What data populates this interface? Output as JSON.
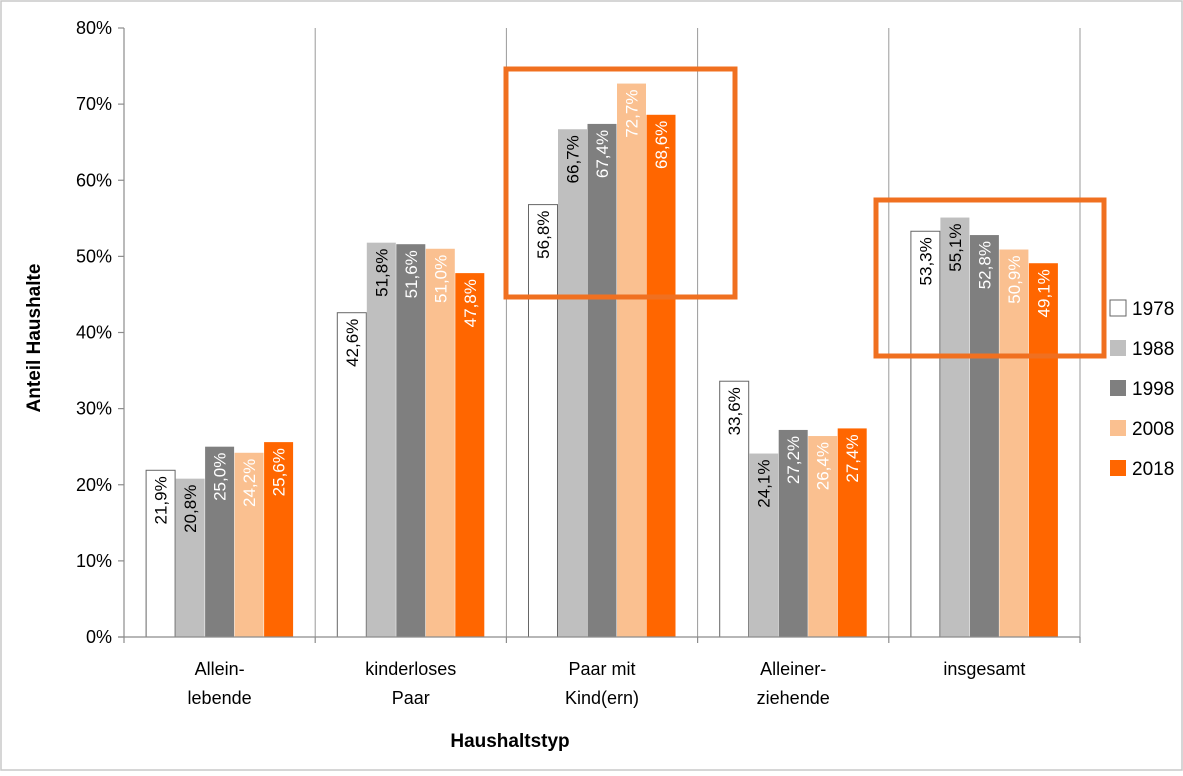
{
  "chart_data": {
    "type": "bar",
    "ylabel": "Anteil Haushalte",
    "xlabel": "Haushaltstyp",
    "ylim": [
      0,
      80
    ],
    "yticks": [
      "0%",
      "10%",
      "20%",
      "30%",
      "40%",
      "50%",
      "60%",
      "70%",
      "80%"
    ],
    "categories": [
      [
        "Allein-",
        "lebende"
      ],
      [
        "kinderloses",
        "Paar"
      ],
      [
        "Paar mit",
        "Kind(ern)"
      ],
      [
        "Alleiner-",
        "ziehende"
      ],
      [
        "insgesamt"
      ]
    ],
    "legend_position": "right",
    "series": [
      {
        "name": "1978",
        "color": "#ffffff",
        "label_color": "#000000",
        "values": [
          21.9,
          42.6,
          56.8,
          33.6,
          53.3
        ],
        "labels": [
          "21,9%",
          "42,6%",
          "56,8%",
          "33,6%",
          "53,3%"
        ]
      },
      {
        "name": "1988",
        "color": "#bfbfbf",
        "label_color": "#000000",
        "values": [
          20.8,
          51.8,
          66.7,
          24.1,
          55.1
        ],
        "labels": [
          "20,8%",
          "51,8%",
          "66,7%",
          "24,1%",
          "55,1%"
        ]
      },
      {
        "name": "1998",
        "color": "#7f7f7f",
        "label_color": "#ffffff",
        "values": [
          25.0,
          51.6,
          67.4,
          27.2,
          52.8
        ],
        "labels": [
          "25,0%",
          "51,6%",
          "67,4%",
          "27,2%",
          "52,8%"
        ]
      },
      {
        "name": "2008",
        "color": "#fac090",
        "label_color": "#ffffff",
        "values": [
          24.2,
          51.0,
          72.7,
          26.4,
          50.9
        ],
        "labels": [
          "24,2%",
          "51,0%",
          "72,7%",
          "26,4%",
          "50,9%"
        ]
      },
      {
        "name": "2018",
        "color": "#ff6600",
        "label_color": "#ffffff",
        "values": [
          25.6,
          47.8,
          68.6,
          27.4,
          49.1
        ],
        "labels": [
          "25,6%",
          "47,8%",
          "68,6%",
          "27,4%",
          "49,1%"
        ]
      }
    ],
    "highlight_color": "#f07020",
    "highlighted_categories": [
      2,
      4
    ],
    "grid": "vertical"
  }
}
